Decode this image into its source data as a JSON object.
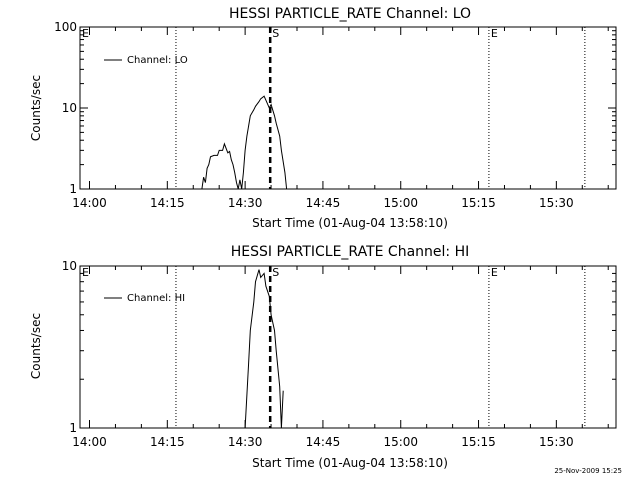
{
  "chart_data": [
    {
      "type": "line",
      "title": "HESSI PARTICLE_RATE Channel: LO",
      "xlabel": "Start Time (01-Aug-04 13:58:10)",
      "ylabel": "Counts/sec",
      "yscale": "log",
      "ylim": [
        1,
        100
      ],
      "xlim": [
        "13:58:10",
        "15:41:30"
      ],
      "x_tick_labels": [
        "14:00",
        "14:15",
        "14:30",
        "14:45",
        "15:00",
        "15:15",
        "15:30"
      ],
      "y_tick_labels": [
        "1",
        "10",
        "100"
      ],
      "legend": {
        "label": "Channel: LO",
        "position": "top-left"
      },
      "event_markers": [
        {
          "label": "E",
          "time": "13:58:10",
          "style": "dotted"
        },
        {
          "label": "",
          "time": "14:16:40",
          "style": "dotted"
        },
        {
          "label": "S",
          "time": "14:34:50",
          "style": "dashed"
        },
        {
          "label": "E",
          "time": "15:17:00",
          "style": "dotted"
        },
        {
          "label": "",
          "time": "15:35:30",
          "style": "dotted"
        }
      ],
      "series": [
        {
          "name": "Channel: LO",
          "x": [
            "14:21:40",
            "14:22:00",
            "14:22:20",
            "14:22:40",
            "14:23:00",
            "14:23:20",
            "14:24:00",
            "14:24:40",
            "14:25:00",
            "14:25:40",
            "14:26:00",
            "14:26:40",
            "14:27:00",
            "14:27:20",
            "14:27:40",
            "14:28:00",
            "14:28:20",
            "14:28:40",
            "14:29:00",
            "14:29:20",
            "14:29:40",
            "14:30:00",
            "14:30:20",
            "14:30:40",
            "14:31:00",
            "14:31:40",
            "14:32:00",
            "14:32:40",
            "14:33:00",
            "14:33:40",
            "14:34:00",
            "14:34:40",
            "14:35:00",
            "14:35:40",
            "14:36:00",
            "14:36:40",
            "14:37:00",
            "14:37:40",
            "14:38:00"
          ],
          "values": [
            1.0,
            1.4,
            1.2,
            1.8,
            2.0,
            2.5,
            2.6,
            2.6,
            3.0,
            3.0,
            3.6,
            2.8,
            2.9,
            2.3,
            2.0,
            1.6,
            1.2,
            1.0,
            1.3,
            1.0,
            1.6,
            3.0,
            4.5,
            6.0,
            8.0,
            9.5,
            10.5,
            12.0,
            13.0,
            14.0,
            12.5,
            10.0,
            11.0,
            8.0,
            6.5,
            4.5,
            3.0,
            1.6,
            1.0
          ]
        }
      ]
    },
    {
      "type": "line",
      "title": "HESSI PARTICLE_RATE Channel: HI",
      "xlabel": "Start Time (01-Aug-04 13:58:10)",
      "ylabel": "Counts/sec",
      "yscale": "log",
      "ylim": [
        1,
        10
      ],
      "xlim": [
        "13:58:10",
        "15:41:30"
      ],
      "x_tick_labels": [
        "14:00",
        "14:15",
        "14:30",
        "14:45",
        "15:00",
        "15:15",
        "15:30"
      ],
      "y_tick_labels": [
        "1",
        "10"
      ],
      "legend": {
        "label": "Channel: HI",
        "position": "top-left"
      },
      "event_markers": [
        {
          "label": "E",
          "time": "13:58:10",
          "style": "dotted"
        },
        {
          "label": "",
          "time": "14:16:40",
          "style": "dotted"
        },
        {
          "label": "S",
          "time": "14:34:50",
          "style": "dashed"
        },
        {
          "label": "E",
          "time": "15:17:00",
          "style": "dotted"
        },
        {
          "label": "",
          "time": "15:35:30",
          "style": "dotted"
        }
      ],
      "series": [
        {
          "name": "Channel: HI",
          "x": [
            "14:30:00",
            "14:30:40",
            "14:31:00",
            "14:31:40",
            "14:32:00",
            "14:32:40",
            "14:33:00",
            "14:33:40",
            "14:34:00",
            "14:34:40",
            "14:35:00",
            "14:35:40",
            "14:36:00",
            "14:36:40",
            "14:37:00",
            "14:37:20"
          ],
          "values": [
            1.0,
            2.5,
            4.0,
            6.0,
            8.0,
            9.5,
            8.5,
            9.0,
            7.5,
            6.5,
            5.0,
            4.0,
            3.0,
            1.8,
            1.0,
            1.7
          ]
        }
      ]
    }
  ],
  "footer": {
    "timestamp": "25-Nov-2009 15:25"
  }
}
